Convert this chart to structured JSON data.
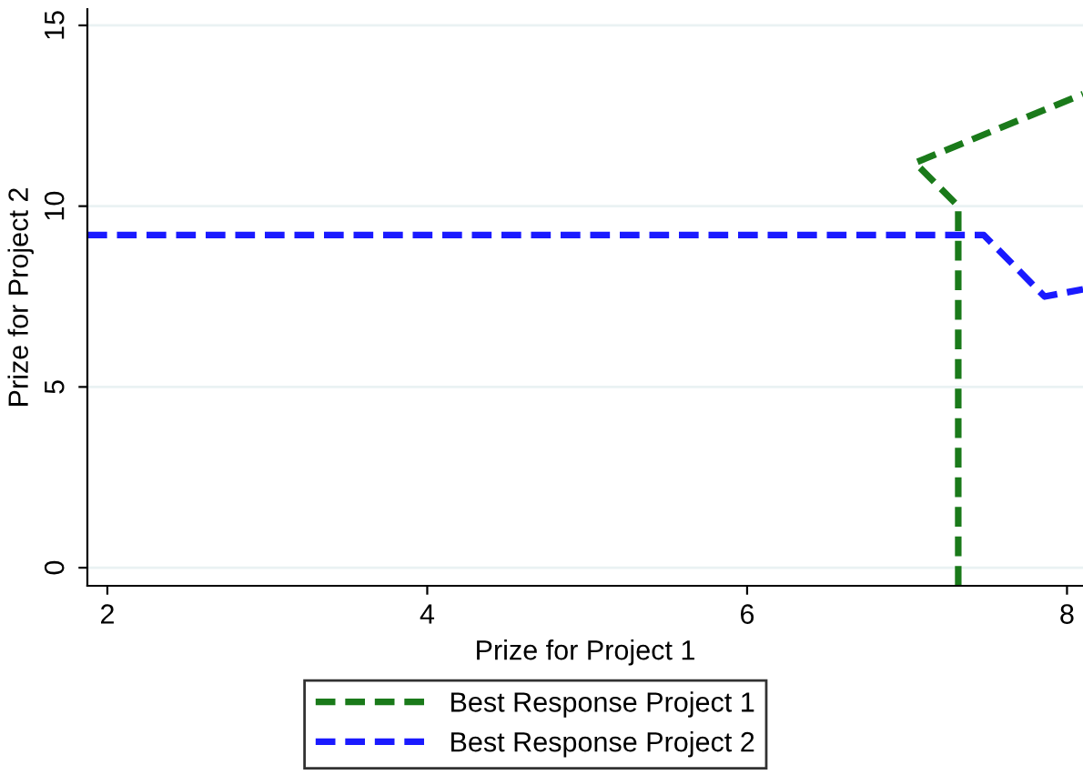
{
  "chart_data": {
    "type": "line",
    "xlabel": "Prize for Project 1",
    "ylabel": "Prize for Project 2",
    "xlim": [
      1.875,
      8.1
    ],
    "ylim": [
      -0.5,
      15.45
    ],
    "xticks": [
      2,
      4,
      6,
      8
    ],
    "yticks": [
      0,
      5,
      10,
      15
    ],
    "grid": "y",
    "legend": "bottom",
    "line_style": "dashed",
    "marker": "none",
    "series": [
      {
        "name": "Best Response Project 1",
        "color": "#1a7a1a",
        "x": [
          7.32,
          7.32,
          7.05,
          8.1
        ],
        "values": [
          -0.5,
          10.0,
          11.2,
          13.1
        ]
      },
      {
        "name": "Best Response Project 2",
        "color": "#1a1aff",
        "x": [
          1.875,
          7.48,
          7.86,
          8.1
        ],
        "values": [
          9.2,
          9.2,
          7.5,
          7.7
        ]
      }
    ]
  }
}
